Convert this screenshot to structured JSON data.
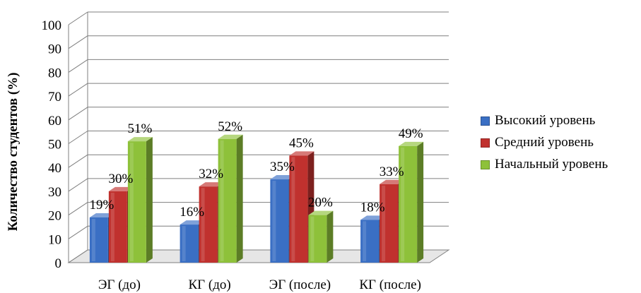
{
  "chart_data": {
    "type": "bar",
    "title": "",
    "xlabel": "",
    "ylabel": "Количество студентов (%)",
    "ylim": [
      0,
      100
    ],
    "yticks": [
      0,
      10,
      20,
      30,
      40,
      50,
      60,
      70,
      80,
      90,
      100
    ],
    "categories": [
      "ЭГ (до)",
      "КГ (до)",
      "ЭГ (после)",
      "КГ (после)"
    ],
    "series": [
      {
        "name": "Высокий уровень",
        "values": [
          19,
          16,
          35,
          18
        ],
        "labels": [
          "19%",
          "16%",
          "35%",
          "18%"
        ],
        "color": "#3a6fc4"
      },
      {
        "name": "Средний уровень",
        "values": [
          30,
          32,
          45,
          33
        ],
        "labels": [
          "30%",
          "32%",
          "45%",
          "33%"
        ],
        "color": "#c0312e"
      },
      {
        "name": "Начальный уровень",
        "values": [
          51,
          52,
          20,
          49
        ],
        "labels": [
          "51%",
          "52%",
          "20%",
          "49%"
        ],
        "color": "#8ec13a"
      }
    ],
    "grid": true,
    "legend_position": "right",
    "three_d": true
  }
}
